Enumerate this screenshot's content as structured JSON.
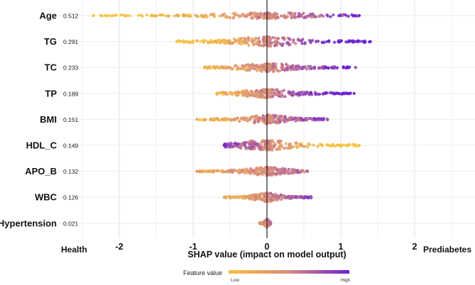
{
  "chart_data": {
    "type": "scatter",
    "subtype": "shap-beeswarm",
    "xlabel": "SHAP value (impact on model output)",
    "xlim": [
      -2.7,
      2.8
    ],
    "xticks": [
      -2,
      -1,
      0,
      1,
      2
    ],
    "xtick_labels": [
      "-2",
      "-1",
      "0",
      "1",
      "2"
    ],
    "left_label": "Health",
    "right_label": "Prediabetes",
    "grid": true,
    "legend": {
      "title": "Feature value",
      "low": "Low",
      "high": "High",
      "low_color": "#f5c242",
      "mid_color": "#d98b7a",
      "high_color": "#6a1fd4",
      "placement": "bottom"
    },
    "features": [
      {
        "name": "Age",
        "mean_abs_shap": "0.512",
        "min": -2.35,
        "max": 1.25,
        "spread": 0.55,
        "trend": 1
      },
      {
        "name": "TG",
        "mean_abs_shap": "0.291",
        "min": -1.22,
        "max": 1.4,
        "spread": 0.85,
        "trend": 1
      },
      {
        "name": "TC",
        "mean_abs_shap": "0.233",
        "min": -0.85,
        "max": 1.2,
        "spread": 0.75,
        "trend": 0.7
      },
      {
        "name": "TP",
        "mean_abs_shap": "0.189",
        "min": -0.68,
        "max": 1.18,
        "spread": 0.75,
        "trend": 0.9
      },
      {
        "name": "BMI",
        "mean_abs_shap": "0.151",
        "min": -0.95,
        "max": 0.82,
        "spread": 0.8,
        "trend": 0.5
      },
      {
        "name": "HDL_C",
        "mean_abs_shap": "0.149",
        "min": -0.58,
        "max": 1.25,
        "spread": 0.9,
        "trend": -1
      },
      {
        "name": "APO_B",
        "mean_abs_shap": "0.132",
        "min": -0.95,
        "max": 0.55,
        "spread": 0.75,
        "trend": 0.4
      },
      {
        "name": "WBC",
        "mean_abs_shap": "0.126",
        "min": -0.58,
        "max": 0.6,
        "spread": 0.75,
        "trend": 0.5
      },
      {
        "name": "Hypertension",
        "mean_abs_shap": "0.021",
        "min": -0.1,
        "max": 0.05,
        "spread": 0.7,
        "trend": 0.3
      }
    ]
  }
}
